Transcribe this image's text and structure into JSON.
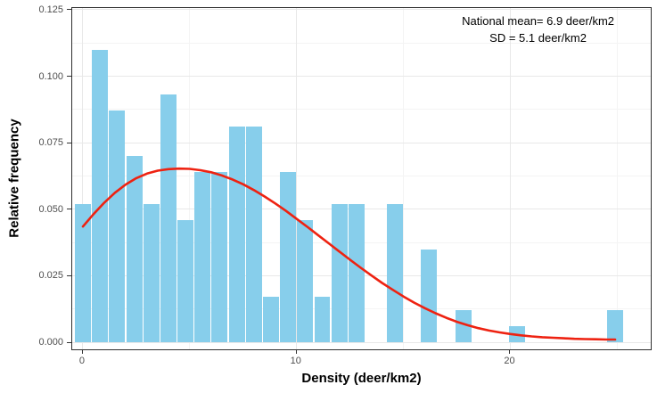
{
  "figure": {
    "x_axis_title": "Density (deer/km2)",
    "y_axis_title": "Relative frequency",
    "annotation_line1": "National mean= 6.9 deer/km2",
    "annotation_line2": "SD = 5.1 deer/km2"
  },
  "colors": {
    "bar_fill": "#87CEEB",
    "curve": "#EE2211",
    "grid_major": "#E8E8E8",
    "grid_minor": "#F4F4F4",
    "panel_border": "#2F2F2F",
    "tick": "#333333",
    "tick_label": "#4D4D4D"
  },
  "chart_data": {
    "type": "bar",
    "subtype": "histogram-with-density-curve",
    "title": "",
    "xlabel": "Density (deer/km2)",
    "ylabel": "Relative frequency",
    "xlim": [
      -0.5,
      26.57
    ],
    "ylim": [
      -0.00267,
      0.12567
    ],
    "grid": true,
    "legend": "none",
    "x_ticks": [
      0,
      10,
      20
    ],
    "x_tick_labels": [
      "0",
      "10",
      "20"
    ],
    "y_ticks": [
      0,
      0.025,
      0.05,
      0.075,
      0.1,
      0.125
    ],
    "y_tick_labels": [
      "0.000",
      "0.025",
      "0.050",
      "0.075",
      "0.100",
      "0.125"
    ],
    "bin_width": 0.8,
    "annotations": [
      "National mean= 6.9 deer/km2",
      "SD = 5.1 deer/km2"
    ],
    "national_mean": 6.9,
    "sd": 5.1,
    "bars": [
      {
        "x": 0.0,
        "freq": 0.052
      },
      {
        "x": 0.8,
        "freq": 0.11
      },
      {
        "x": 1.6,
        "freq": 0.087
      },
      {
        "x": 2.4,
        "freq": 0.07
      },
      {
        "x": 3.2,
        "freq": 0.052
      },
      {
        "x": 4.0,
        "freq": 0.093
      },
      {
        "x": 4.8,
        "freq": 0.046
      },
      {
        "x": 5.6,
        "freq": 0.064
      },
      {
        "x": 6.4,
        "freq": 0.064
      },
      {
        "x": 7.2,
        "freq": 0.081
      },
      {
        "x": 8.0,
        "freq": 0.081
      },
      {
        "x": 8.8,
        "freq": 0.017
      },
      {
        "x": 9.6,
        "freq": 0.064
      },
      {
        "x": 10.4,
        "freq": 0.046
      },
      {
        "x": 11.2,
        "freq": 0.017
      },
      {
        "x": 12.0,
        "freq": 0.052
      },
      {
        "x": 12.8,
        "freq": 0.052
      },
      {
        "x": 14.6,
        "freq": 0.052
      },
      {
        "x": 16.2,
        "freq": 0.035
      },
      {
        "x": 17.8,
        "freq": 0.012
      },
      {
        "x": 20.3,
        "freq": 0.006
      },
      {
        "x": 24.9,
        "freq": 0.012
      }
    ],
    "density_curve": [
      [
        0,
        0.0435
      ],
      [
        0.5,
        0.0482
      ],
      [
        1,
        0.0525
      ],
      [
        1.5,
        0.0562
      ],
      [
        2,
        0.0593
      ],
      [
        2.5,
        0.0617
      ],
      [
        3,
        0.0634
      ],
      [
        3.5,
        0.0645
      ],
      [
        4,
        0.0651
      ],
      [
        4.5,
        0.0653
      ],
      [
        5,
        0.0652
      ],
      [
        5.5,
        0.0647
      ],
      [
        6,
        0.0639
      ],
      [
        6.5,
        0.0627
      ],
      [
        7,
        0.0612
      ],
      [
        7.5,
        0.0594
      ],
      [
        8,
        0.0572
      ],
      [
        8.5,
        0.0548
      ],
      [
        9,
        0.0522
      ],
      [
        9.5,
        0.0494
      ],
      [
        10,
        0.0464
      ],
      [
        10.5,
        0.0434
      ],
      [
        11,
        0.0403
      ],
      [
        11.5,
        0.0372
      ],
      [
        12,
        0.0341
      ],
      [
        12.5,
        0.031
      ],
      [
        13,
        0.028
      ],
      [
        13.5,
        0.0251
      ],
      [
        14,
        0.0223
      ],
      [
        14.5,
        0.0197
      ],
      [
        15,
        0.0172
      ],
      [
        15.5,
        0.0149
      ],
      [
        16,
        0.0128
      ],
      [
        16.5,
        0.0109
      ],
      [
        17,
        0.0092
      ],
      [
        17.5,
        0.0077
      ],
      [
        18,
        0.0064
      ],
      [
        18.5,
        0.0053
      ],
      [
        19,
        0.0044
      ],
      [
        19.5,
        0.0037
      ],
      [
        20,
        0.0031
      ],
      [
        20.5,
        0.0026
      ],
      [
        21,
        0.0022
      ],
      [
        21.5,
        0.0019
      ],
      [
        22,
        0.0017
      ],
      [
        22.5,
        0.0015
      ],
      [
        23,
        0.0013
      ],
      [
        23.5,
        0.0012
      ],
      [
        24,
        0.0011
      ],
      [
        24.5,
        0.001
      ],
      [
        24.9,
        0.001
      ]
    ]
  }
}
